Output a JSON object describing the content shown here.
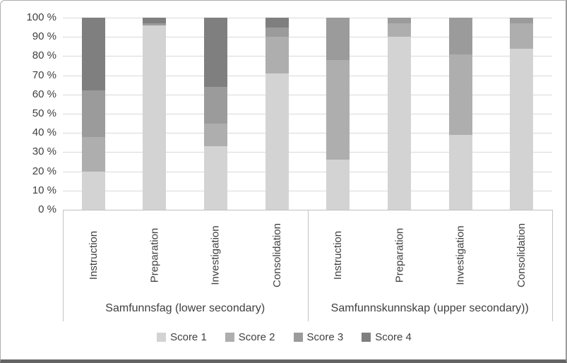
{
  "chart_data": {
    "type": "bar",
    "stacked": true,
    "percent_axis": true,
    "grid": "horizontal",
    "legend_position": "bottom",
    "ylim": [
      0,
      100
    ],
    "y_ticks": [
      "100 %",
      "90 %",
      "80 %",
      "70 %",
      "60 %",
      "50 %",
      "40 %",
      "30 %",
      "20 %",
      "10 %",
      "0 %"
    ],
    "groups": [
      {
        "label": "Samfunnsfag (lower secondary)",
        "categories": [
          "Instruction",
          "Preparation",
          "Investigation",
          "Consolidation"
        ]
      },
      {
        "label": "Samfunnskunnskap (upper secondary))",
        "categories": [
          "Instruction",
          "Preparation",
          "Investigation",
          "Consolidation"
        ]
      }
    ],
    "series": [
      {
        "name": "Score 1",
        "color": "#d3d3d3",
        "values": [
          20,
          96,
          33,
          71,
          26,
          90,
          39,
          84
        ]
      },
      {
        "name": "Score 2",
        "color": "#aeaeae",
        "values": [
          18,
          0,
          12,
          19,
          52,
          7,
          42,
          13
        ]
      },
      {
        "name": "Score 3",
        "color": "#9b9b9b",
        "values": [
          24,
          1,
          19,
          5,
          22,
          3,
          19,
          3
        ]
      },
      {
        "name": "Score 4",
        "color": "#7f7f7f",
        "values": [
          38,
          3,
          36,
          5,
          0,
          0,
          0,
          0
        ]
      }
    ]
  },
  "colors": {
    "grid": "#d9d9d9",
    "axis": "#bfbfbf",
    "text": "#404040",
    "frame_border": "#aeaeae",
    "frame_shadow": "#646464"
  }
}
